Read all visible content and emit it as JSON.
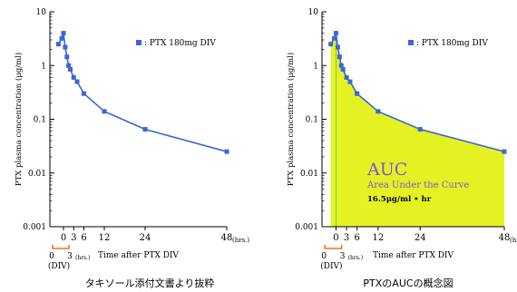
{
  "chart_data": [
    {
      "type": "line",
      "title": "",
      "xlabel": "Time after PTX DIV",
      "ylabel": "PTX plasma concentration (μg/ml)",
      "x_unit_label": "(hrs.)",
      "x_ticks": [
        "0",
        "3",
        "6",
        "12",
        "24",
        "48"
      ],
      "y_ticks": [
        "10",
        "1",
        "0.1",
        "0.01",
        "0.001"
      ],
      "y_scale": "log",
      "ylim": [
        0.001,
        10
      ],
      "xlim": [
        -4,
        48
      ],
      "legend": "top-right",
      "grid": false,
      "infusion_label": "(DIV)",
      "infusion_ticks": [
        "0",
        "3"
      ],
      "infusion_unit": "(hrs.)",
      "series": [
        {
          "name": ": PTX 180mg DIV",
          "x": [
            -1.5,
            -0.5,
            0,
            0.5,
            1,
            1.5,
            2,
            3,
            4,
            6,
            12,
            24,
            48
          ],
          "y": [
            2.5,
            3.2,
            4.0,
            2.2,
            1.45,
            1.0,
            0.85,
            0.6,
            0.5,
            0.3,
            0.14,
            0.065,
            0.025
          ]
        }
      ],
      "caption": "タキソール添付文書より抜粋"
    },
    {
      "type": "area",
      "title": "",
      "xlabel": "Time after PTX DIV",
      "ylabel": "PTX plasma concentration (μg/ml)",
      "x_unit_label": "(hrs.)",
      "x_ticks": [
        "0",
        "3",
        "6",
        "12",
        "24",
        "48"
      ],
      "y_ticks": [
        "10",
        "1",
        "0.1",
        "0.01",
        "0.001"
      ],
      "y_scale": "log",
      "ylim": [
        0.001,
        10
      ],
      "xlim": [
        -4,
        48
      ],
      "legend": "top-right",
      "grid": false,
      "infusion_label": "(DIV)",
      "infusion_ticks": [
        "0",
        "3"
      ],
      "infusion_unit": "(hrs.)",
      "series": [
        {
          "name": ": PTX 180mg DIV",
          "x": [
            -1.5,
            -0.5,
            0,
            0.5,
            1,
            1.5,
            2,
            3,
            4,
            6,
            12,
            24,
            48
          ],
          "y": [
            2.5,
            3.2,
            4.0,
            2.2,
            1.45,
            1.0,
            0.85,
            0.6,
            0.5,
            0.3,
            0.14,
            0.065,
            0.025
          ]
        }
      ],
      "annotation": {
        "title": "AUC",
        "subtitle": "Area Under the Curve",
        "value": "16.5μg/ml • hr"
      },
      "colors": {
        "series": "#3a66d8",
        "auc_fill": "#e4f224",
        "annotation": "#7b55d6"
      },
      "caption": "PTXのAUCの概念図"
    }
  ]
}
